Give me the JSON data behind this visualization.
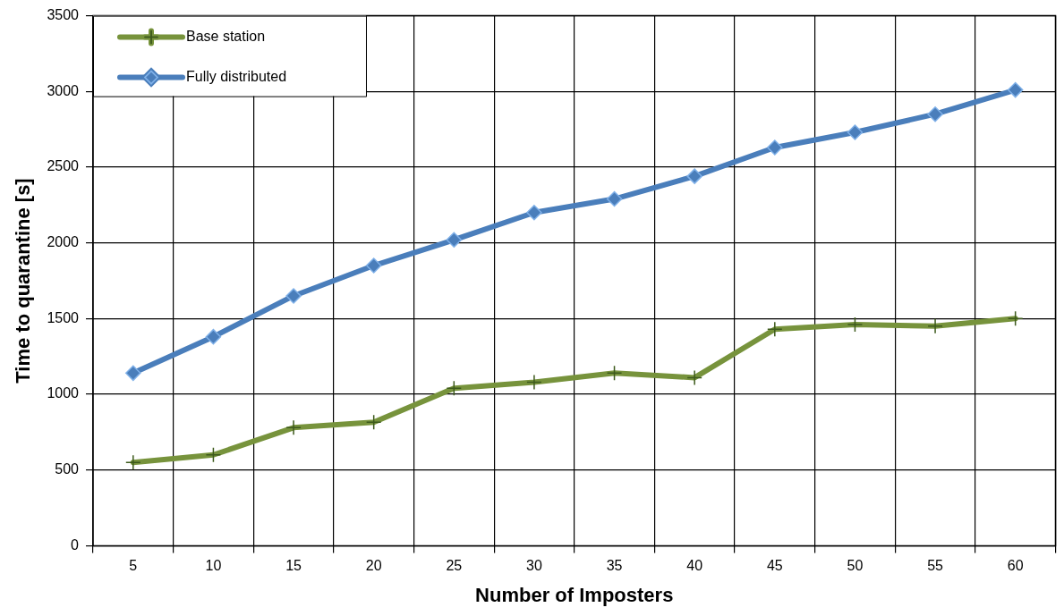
{
  "chart_data": {
    "type": "line",
    "xlabel": "Number of Imposters",
    "ylabel": "Time to quarantine [s]",
    "categories": [
      "5",
      "10",
      "15",
      "20",
      "25",
      "30",
      "35",
      "40",
      "45",
      "50",
      "55",
      "60"
    ],
    "series": [
      {
        "name": "Base station",
        "color": "#77933c",
        "marker": "cross",
        "values": [
          550,
          600,
          780,
          815,
          1040,
          1080,
          1140,
          1110,
          1430,
          1460,
          1450,
          1500
        ]
      },
      {
        "name": "Fully distributed",
        "color": "#4a7ebb",
        "marker": "diamond",
        "values": [
          1140,
          1380,
          1650,
          1850,
          2020,
          2200,
          2290,
          2440,
          2630,
          2730,
          2850,
          3010
        ]
      }
    ],
    "ylim": [
      0,
      3500
    ],
    "yticks": [
      0,
      500,
      1000,
      1500,
      2000,
      2500,
      3000,
      3500
    ],
    "grid": true,
    "legend": "top left",
    "line_style": "solid"
  }
}
